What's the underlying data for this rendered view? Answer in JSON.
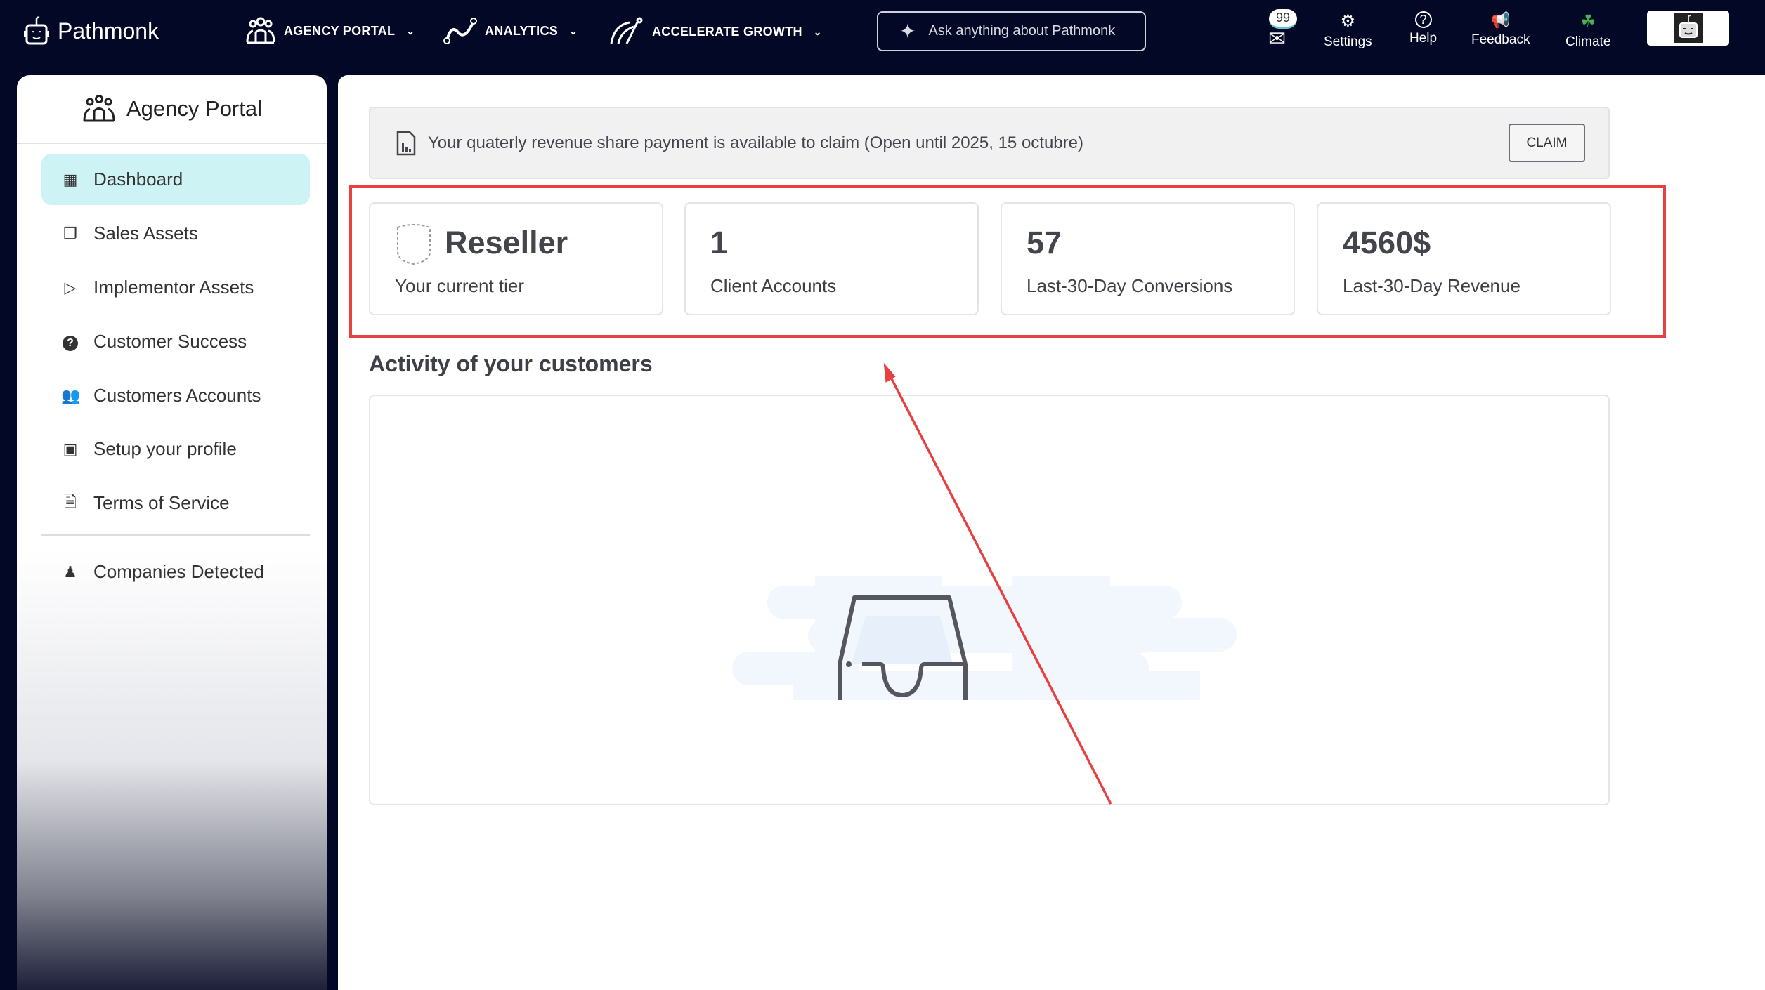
{
  "topbar": {
    "brand": "Pathmonk",
    "nav": [
      {
        "label": "AGENCY PORTAL",
        "icon": "agency-people-icon"
      },
      {
        "label": "ANALYTICS",
        "icon": "analytics-path-icon"
      },
      {
        "label": "ACCELERATE GROWTH",
        "icon": "growth-icon"
      }
    ],
    "ask_placeholder": "Ask anything about Pathmonk",
    "inbox_count": "99",
    "actions": [
      {
        "label": "Settings",
        "icon": "gear-icon"
      },
      {
        "label": "Help",
        "icon": "help-icon"
      },
      {
        "label": "Feedback",
        "icon": "megaphone-icon"
      },
      {
        "label": "Climate",
        "icon": "sprout-icon",
        "color": "#4caf50"
      }
    ]
  },
  "sidebar": {
    "title": "Agency Portal",
    "items": [
      {
        "label": "Dashboard",
        "icon": "dashboard-icon",
        "active": true
      },
      {
        "label": "Sales Assets",
        "icon": "copy-icon"
      },
      {
        "label": "Implementor Assets",
        "icon": "video-book-icon"
      },
      {
        "label": "Customer Success",
        "icon": "question-circle-icon"
      },
      {
        "label": "Customers Accounts",
        "icon": "users-icon"
      },
      {
        "label": "Setup your profile",
        "icon": "profile-card-icon"
      },
      {
        "label": "Terms of Service",
        "icon": "document-icon"
      }
    ],
    "extra_item": {
      "label": "Companies Detected",
      "icon": "user-tie-icon"
    }
  },
  "banner": {
    "text": "Your quaterly revenue share payment is available to claim (Open until 2025, 15 octubre)",
    "claim_label": "CLAIM"
  },
  "stats": [
    {
      "value": "Reseller",
      "label": "Your current tier"
    },
    {
      "value": "1",
      "label": "Client Accounts"
    },
    {
      "value": "57",
      "label": "Last-30-Day Conversions"
    },
    {
      "value": "4560$",
      "label": "Last-30-Day Revenue"
    }
  ],
  "activity": {
    "title": "Activity of your customers"
  },
  "colors": {
    "topbar": "#020826",
    "active_item": "#cdf3f5",
    "annotation": "#e84040"
  }
}
